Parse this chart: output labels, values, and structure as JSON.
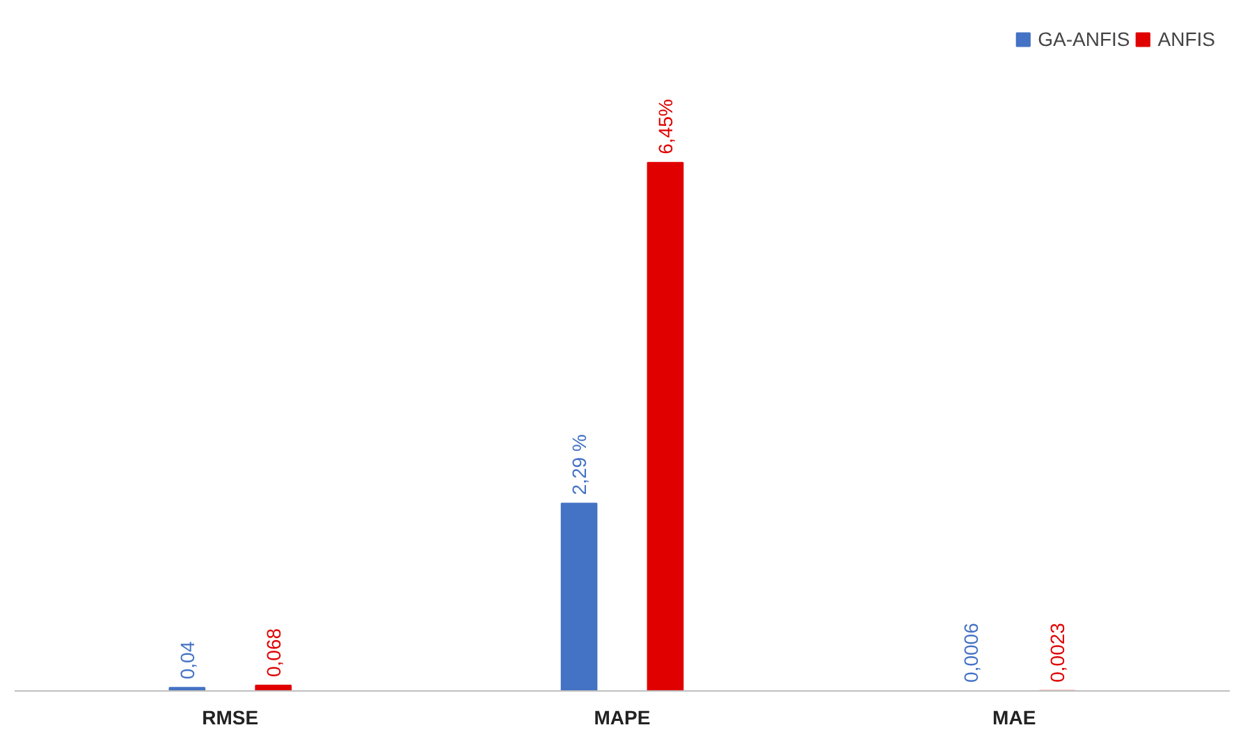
{
  "chart_data": {
    "type": "bar",
    "categories": [
      "RMSE",
      "MAPE",
      "MAE"
    ],
    "series": [
      {
        "name": "GA-ANFIS",
        "color": "#4472c4",
        "values": [
          0.04,
          2.29,
          0.0006
        ],
        "value_labels": [
          "0,04",
          "2,29 %",
          "0,0006"
        ]
      },
      {
        "name": "ANFIS",
        "color": "#e00000",
        "values": [
          0.068,
          6.45,
          0.0023
        ],
        "value_labels": [
          "0,068",
          "6,45%",
          "0,0023"
        ]
      }
    ],
    "legend": "top right",
    "grid": false
  }
}
